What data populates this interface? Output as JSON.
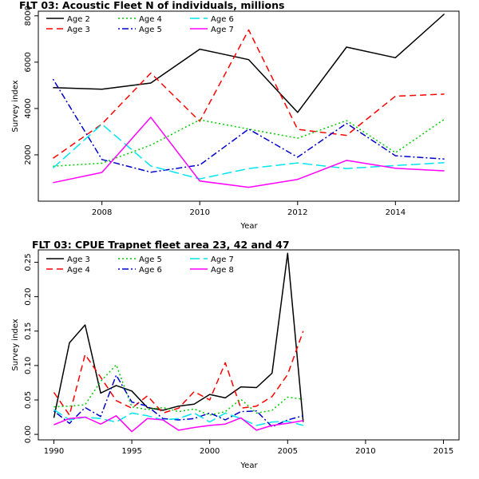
{
  "chart_data": [
    {
      "type": "line",
      "title": "FLT 03: Acoustic Fleet   N of individuals, millions",
      "xlabel": "Year",
      "ylabel": "Survey index",
      "xlim": [
        2006.7,
        2015.3
      ],
      "ylim": [
        0,
        8200
      ],
      "xticks": [
        2008,
        2010,
        2012,
        2014
      ],
      "yticks": [
        2000,
        4000,
        6000,
        8000
      ],
      "grid": false,
      "legend_position": "top-left",
      "series": [
        {
          "name": "Age 2",
          "color": "#000000",
          "dash": "solid",
          "x": [
            2007,
            2008,
            2009,
            2010,
            2011,
            2012,
            2013,
            2014,
            2015
          ],
          "y": [
            4900,
            4830,
            5100,
            6560,
            6110,
            3830,
            6650,
            6190,
            8080
          ]
        },
        {
          "name": "Age 3",
          "color": "#ff0000",
          "dash": "dashed",
          "x": [
            2007,
            2008,
            2009,
            2010,
            2011,
            2012,
            2013,
            2014,
            2015
          ],
          "y": [
            1850,
            3330,
            5530,
            3450,
            7390,
            3100,
            2840,
            4530,
            4620
          ]
        },
        {
          "name": "Age 4",
          "color": "#00cc00",
          "dash": "dotted",
          "x": [
            2007,
            2008,
            2009,
            2010,
            2011,
            2012,
            2013,
            2014,
            2015
          ],
          "y": [
            1510,
            1640,
            2420,
            3510,
            3110,
            2720,
            3480,
            2090,
            3540
          ]
        },
        {
          "name": "Age 5",
          "color": "#0000cd",
          "dash": "dotdash",
          "x": [
            2007,
            2008,
            2009,
            2010,
            2011,
            2012,
            2013,
            2014,
            2015
          ],
          "y": [
            5270,
            1800,
            1250,
            1560,
            3110,
            1900,
            3360,
            1960,
            1820
          ]
        },
        {
          "name": "Age 6",
          "color": "#00e5ee",
          "dash": "longdash",
          "x": [
            2007,
            2008,
            2009,
            2010,
            2011,
            2012,
            2013,
            2014,
            2015
          ],
          "y": [
            1430,
            3320,
            1520,
            960,
            1410,
            1650,
            1410,
            1540,
            1660
          ]
        },
        {
          "name": "Age 7",
          "color": "#ff00ff",
          "dash": "solid",
          "x": [
            2007,
            2008,
            2009,
            2010,
            2011,
            2012,
            2013,
            2014,
            2015
          ],
          "y": [
            800,
            1240,
            3620,
            870,
            600,
            940,
            1760,
            1420,
            1310
          ]
        }
      ]
    },
    {
      "type": "line",
      "title": "FLT 03: CPUE Trapnet fleet area 23, 42 and 47",
      "xlabel": "Year",
      "ylabel": "Survey index",
      "xlim": [
        1989,
        2016
      ],
      "ylim": [
        -0.008,
        0.268
      ],
      "xticks": [
        1990,
        1995,
        2000,
        2005,
        2010,
        2015
      ],
      "yticks": [
        0,
        0.05,
        0.1,
        0.15,
        0.2,
        0.25
      ],
      "ytick_labels": [
        "0.00",
        "0.05",
        "0.10",
        "0.15",
        "0.20",
        "0.25"
      ],
      "grid": false,
      "legend_position": "top-left",
      "series": [
        {
          "name": "Age 3",
          "color": "#000000",
          "dash": "solid",
          "x": [
            1990,
            1991,
            1992,
            1993,
            1994,
            1995,
            1996,
            1997,
            1998,
            1999,
            2000,
            2001,
            2002,
            2003,
            2004,
            2005,
            2006
          ],
          "y": [
            0.024,
            0.133,
            0.159,
            0.06,
            0.071,
            0.063,
            0.039,
            0.035,
            0.041,
            0.044,
            0.058,
            0.053,
            0.069,
            0.068,
            0.089,
            0.263,
            0.018
          ]
        },
        {
          "name": "Age 4",
          "color": "#ff0000",
          "dash": "dashed",
          "x": [
            1990,
            1991,
            1992,
            1993,
            1994,
            1995,
            1996,
            1997,
            1998,
            1999,
            2000,
            2001,
            2002,
            2003,
            2004,
            2005,
            2006
          ],
          "y": [
            0.061,
            0.028,
            0.116,
            0.083,
            0.049,
            0.038,
            0.056,
            0.031,
            0.038,
            0.062,
            0.05,
            0.104,
            0.038,
            0.041,
            0.055,
            0.087,
            0.15
          ]
        },
        {
          "name": "Age 5",
          "color": "#00cc00",
          "dash": "dotted",
          "x": [
            1990,
            1991,
            1992,
            1993,
            1994,
            1995,
            1996,
            1997,
            1998,
            1999,
            2000,
            2001,
            2002,
            2003,
            2004,
            2005,
            2006
          ],
          "y": [
            0.04,
            0.041,
            0.043,
            0.077,
            0.101,
            0.04,
            0.036,
            0.039,
            0.033,
            0.037,
            0.028,
            0.033,
            0.051,
            0.031,
            0.035,
            0.054,
            0.051
          ]
        },
        {
          "name": "Age 6",
          "color": "#0000cd",
          "dash": "dotdash",
          "x": [
            1990,
            1991,
            1992,
            1993,
            1994,
            1995,
            1996,
            1997,
            1998,
            1999,
            2000,
            2001,
            2002,
            2003,
            2004,
            2005,
            2006
          ],
          "y": [
            0.034,
            0.016,
            0.039,
            0.026,
            0.086,
            0.047,
            0.041,
            0.023,
            0.021,
            0.023,
            0.031,
            0.021,
            0.033,
            0.034,
            0.011,
            0.021,
            0.027
          ]
        },
        {
          "name": "Age 7",
          "color": "#00e5ee",
          "dash": "longdash",
          "x": [
            1990,
            1991,
            1992,
            1993,
            1994,
            1995,
            1996,
            1997,
            1998,
            1999,
            2000,
            2001,
            2002,
            2003,
            2004,
            2005,
            2006
          ],
          "y": [
            0.036,
            0.021,
            0.025,
            0.023,
            0.018,
            0.031,
            0.027,
            0.021,
            0.023,
            0.031,
            0.018,
            0.031,
            0.023,
            0.013,
            0.018,
            0.019,
            0.013
          ]
        },
        {
          "name": "Age 8",
          "color": "#ff00ff",
          "dash": "solid",
          "x": [
            1990,
            1991,
            1992,
            1993,
            1994,
            1995,
            1996,
            1997,
            1998,
            1999,
            2000,
            2001,
            2002,
            2003,
            2004,
            2005,
            2006
          ],
          "y": [
            0.014,
            0.023,
            0.025,
            0.015,
            0.027,
            0.004,
            0.023,
            0.021,
            0.006,
            0.01,
            0.013,
            0.015,
            0.024,
            0.006,
            0.013,
            0.016,
            0.02
          ]
        }
      ]
    }
  ]
}
